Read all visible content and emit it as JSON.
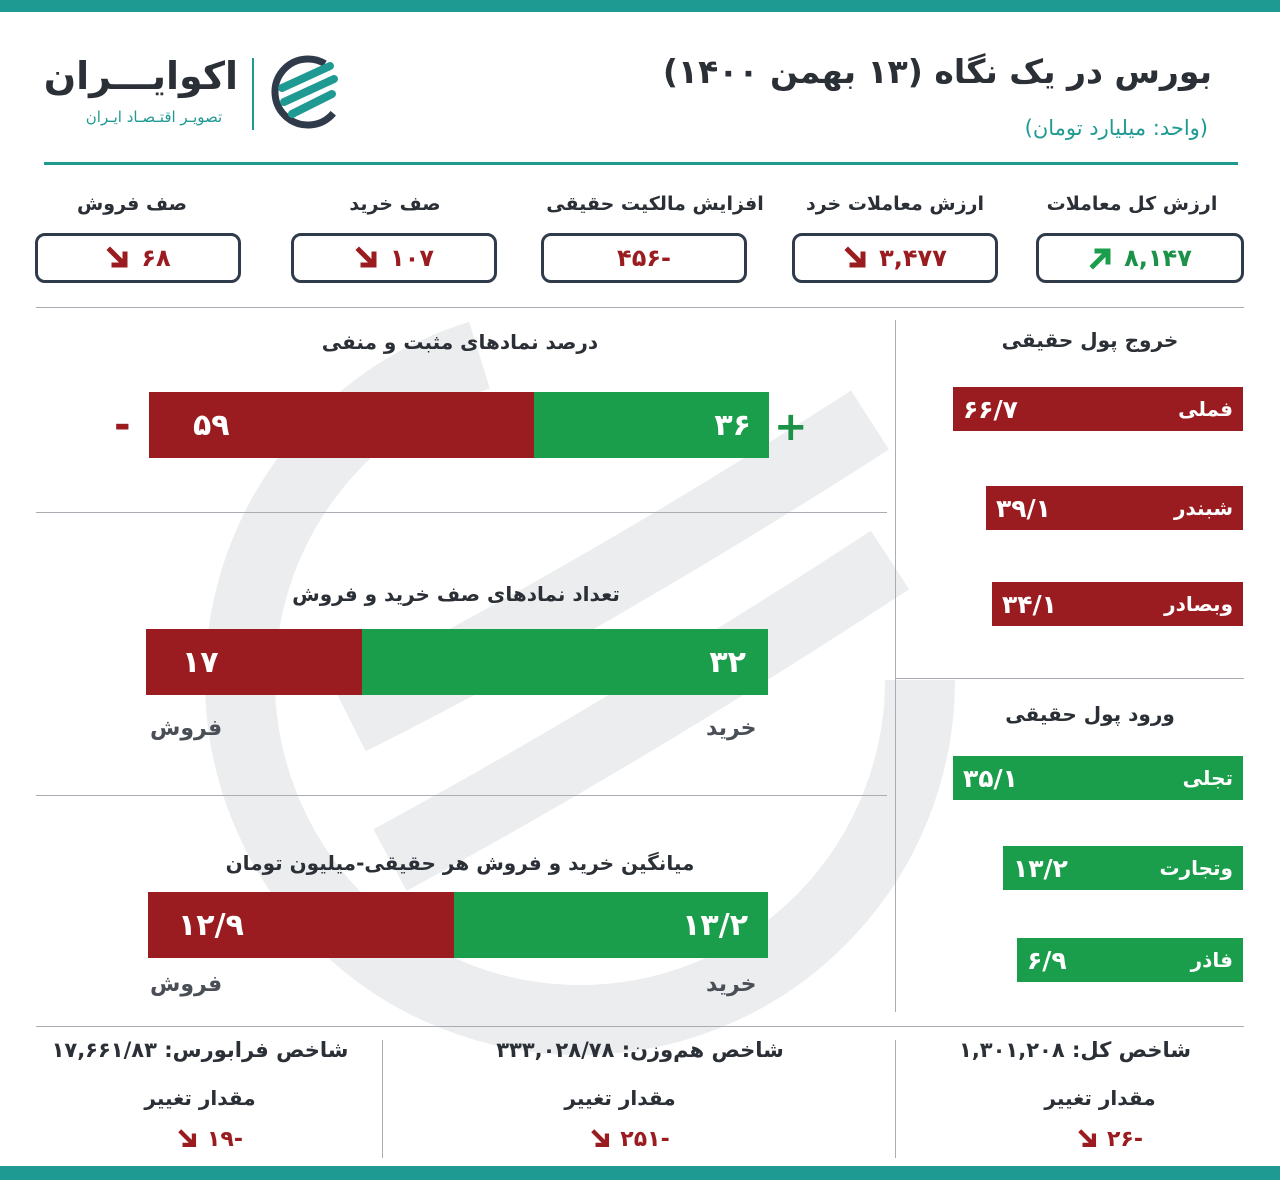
{
  "header": {
    "title": "بورس در یک نگاه (۱۳ بهمن ۱۴۰۰)",
    "subtitle": "(واحد: میلیارد تومان)",
    "logo_name": "اکوایـــران",
    "logo_tagline": "تصویـر اقتـصـاد ایـران"
  },
  "summary_cards": [
    {
      "label": "ارزش کل معاملات",
      "value": "۸,۱۴۷",
      "trend": "up"
    },
    {
      "label": "ارزش معاملات خرد",
      "value": "۳,۴۷۷",
      "trend": "down"
    },
    {
      "label": "افزایش مالکیت حقیقی",
      "value": "-۴۵۶",
      "trend": "none"
    },
    {
      "label": "صف خرید",
      "value": "۱۰۷",
      "trend": "down"
    },
    {
      "label": "صف فروش",
      "value": "۶۸",
      "trend": "down"
    }
  ],
  "positive_negative": {
    "title": "درصد نمادهای مثبت و منفی",
    "positive": {
      "sign": "+",
      "value": "۳۶",
      "number": 36
    },
    "negative": {
      "sign": "-",
      "value": "۵۹",
      "number": 59
    }
  },
  "queue_count": {
    "title": "تعداد نمادهای صف خرید و فروش",
    "buy": {
      "label": "خرید",
      "value": "۳۲",
      "number": 32
    },
    "sell": {
      "label": "فروش",
      "value": "۱۷",
      "number": 17
    }
  },
  "avg_trade": {
    "title": "میانگین خرید و فروش هر حقیقی-میلیون تومان",
    "buy": {
      "label": "خرید",
      "value": "۱۳/۲",
      "number": 13.2
    },
    "sell": {
      "label": "فروش",
      "value": "۱۲/۹",
      "number": 12.9
    }
  },
  "money_outflow": {
    "title": "خروج پول حقیقی",
    "items": [
      {
        "name": "فملی",
        "value": "۶۶/۷",
        "number": 66.7
      },
      {
        "name": "شبندر",
        "value": "۳۹/۱",
        "number": 39.1
      },
      {
        "name": "وبصادر",
        "value": "۳۴/۱",
        "number": 34.1
      }
    ]
  },
  "money_inflow": {
    "title": "ورود پول حقیقی",
    "items": [
      {
        "name": "تجلی",
        "value": "۳۵/۱",
        "number": 35.1
      },
      {
        "name": "وتجارت",
        "value": "۱۳/۲",
        "number": 13.2
      },
      {
        "name": "فاذر",
        "value": "۶/۹",
        "number": 6.9
      }
    ]
  },
  "indices": [
    {
      "label": "شاخص کل:",
      "value": "۱,۳۰۱,۲۰۸",
      "change_label": "مقدار تغییر",
      "change": "-۲۶"
    },
    {
      "label": "شاخص هم‌وزن:",
      "value": "۳۳۳,۰۲۸/۷۸",
      "change_label": "مقدار تغییر",
      "change": "-۲۵۱"
    },
    {
      "label": "شاخص فرابورس:",
      "value": "۱۷,۶۶۱/۸۳",
      "change_label": "مقدار تغییر",
      "change": "-۱۹"
    }
  ],
  "colors": {
    "teal": "#1f9a93",
    "red": "#9b1c20",
    "green": "#1b9e4b",
    "dark": "#2f3b4a"
  }
}
